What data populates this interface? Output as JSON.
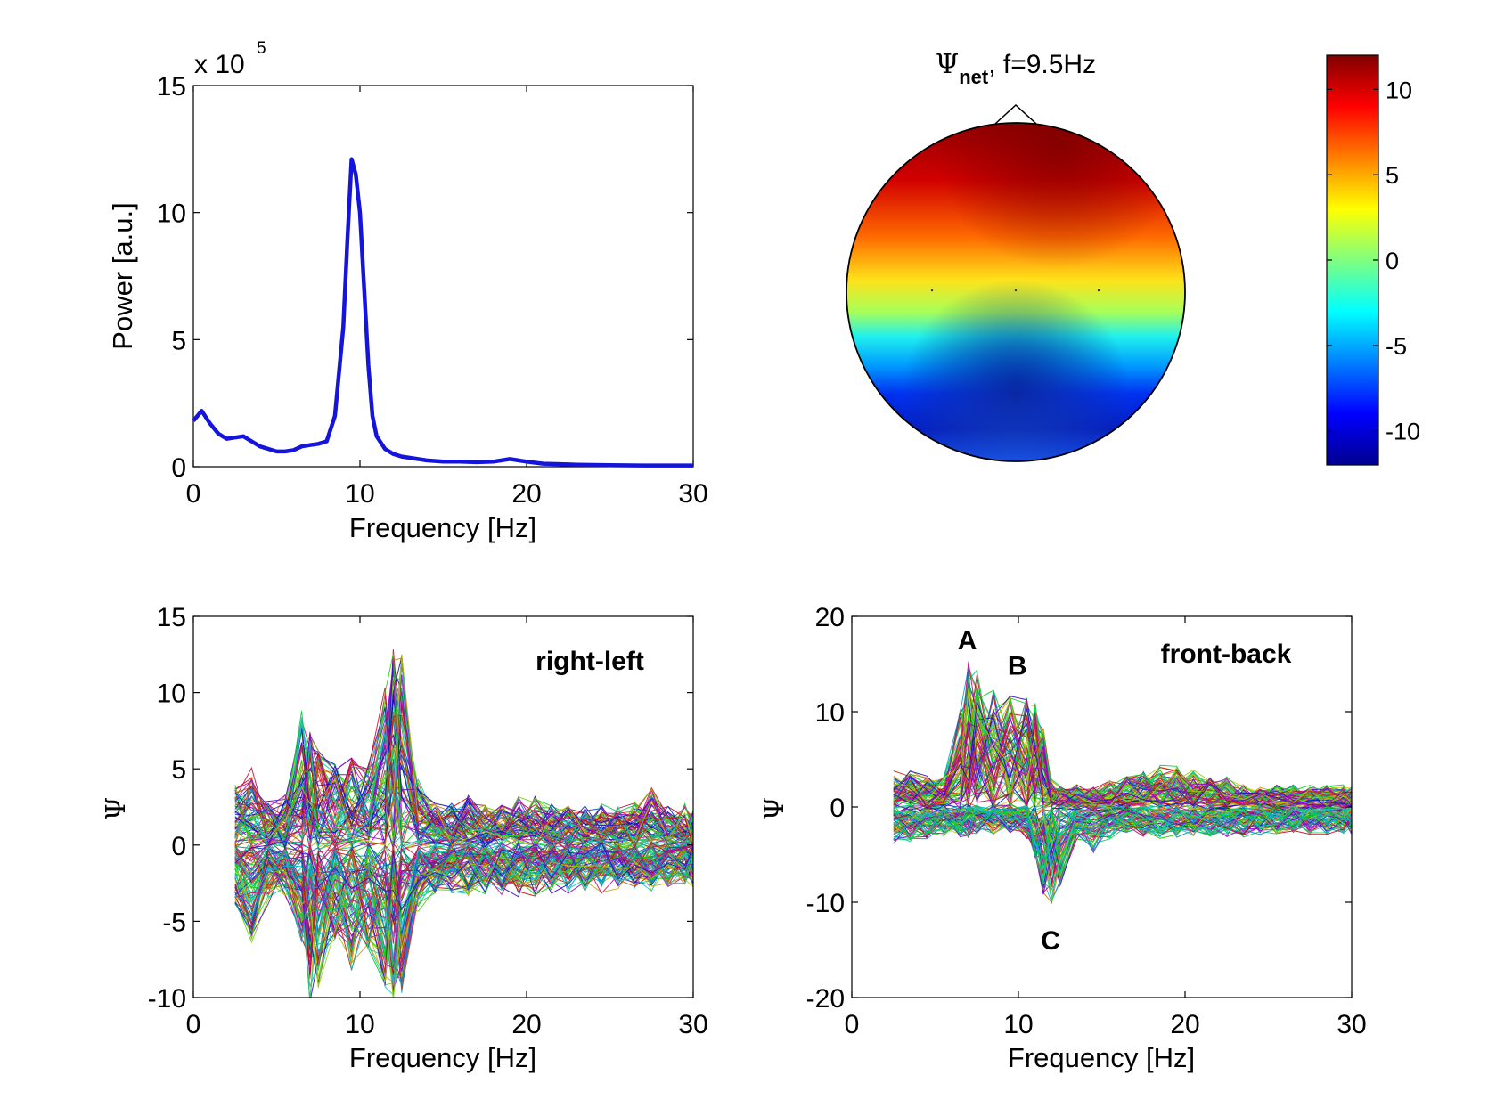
{
  "chart_data": [
    {
      "id": "spectrum",
      "type": "line",
      "xlabel": "Frequency [Hz]",
      "ylabel": "Power [a.u.]",
      "xlim": [
        0,
        30
      ],
      "ylim": [
        0,
        15
      ],
      "xticks": [
        "0",
        "10",
        "20",
        "30"
      ],
      "yticks": [
        "0",
        "5",
        "10",
        "15"
      ],
      "exponent_label": "x 10",
      "exponent_power": "5",
      "series": [
        {
          "name": "power",
          "color": "#1414dc",
          "x": [
            0,
            0.5,
            1,
            1.5,
            2,
            2.5,
            3,
            3.5,
            4,
            4.5,
            5,
            5.5,
            6,
            6.5,
            7,
            7.5,
            8,
            8.5,
            9,
            9.25,
            9.5,
            9.75,
            10,
            10.25,
            10.5,
            10.75,
            11,
            11.5,
            12,
            12.5,
            13,
            14,
            15,
            16,
            17,
            18,
            19,
            20,
            21,
            22,
            23,
            25,
            27,
            30
          ],
          "values": [
            1.8,
            2.2,
            1.7,
            1.3,
            1.1,
            1.15,
            1.2,
            1.0,
            0.8,
            0.7,
            0.6,
            0.6,
            0.65,
            0.8,
            0.85,
            0.9,
            1.0,
            2.0,
            5.5,
            9.0,
            12.1,
            11.5,
            10.0,
            7.0,
            4.0,
            2.0,
            1.2,
            0.7,
            0.5,
            0.4,
            0.35,
            0.25,
            0.2,
            0.2,
            0.18,
            0.2,
            0.3,
            0.2,
            0.12,
            0.1,
            0.08,
            0.06,
            0.05,
            0.05
          ]
        }
      ]
    },
    {
      "id": "right-left",
      "type": "line",
      "title": "right-left",
      "xlabel": "Frequency [Hz]",
      "ylabel": "Ψ",
      "xlim": [
        0,
        30
      ],
      "ylim": [
        -10,
        15
      ],
      "xticks": [
        "0",
        "10",
        "20",
        "30"
      ],
      "yticks": [
        "-10",
        "-5",
        "0",
        "5",
        "10",
        "15"
      ],
      "n_traces": 150,
      "x": [
        2.5,
        3.5,
        4.5,
        5.5,
        6.5,
        7,
        7.5,
        8.5,
        9.5,
        10.5,
        11.5,
        12,
        12.5,
        13.5,
        14.5,
        15.5,
        16.5,
        17.5,
        18.5,
        19.5,
        20.5,
        21.5,
        22.5,
        23.5,
        24.5,
        25.5,
        26.5,
        27.5,
        28.5,
        29.5,
        30
      ],
      "envelope_upper": [
        4,
        4.8,
        2.5,
        3,
        8.5,
        7.5,
        6,
        5,
        5.5,
        5,
        10,
        12.5,
        12.3,
        4,
        2.5,
        2.5,
        3,
        2.5,
        2.5,
        2.8,
        2.8,
        2.4,
        2.4,
        2.2,
        2.4,
        2.2,
        2.5,
        3.5,
        2.2,
        2.5,
        2
      ],
      "envelope_lower": [
        -3.5,
        -6,
        -3.5,
        -3,
        -6,
        -10,
        -9,
        -6,
        -8,
        -6.5,
        -9,
        -10,
        -9.5,
        -4,
        -3,
        -2.8,
        -3,
        -2.8,
        -3,
        -3,
        -3,
        -2.8,
        -2.8,
        -2.8,
        -2.8,
        -2.5,
        -2.5,
        -2.8,
        -2.5,
        -2.5,
        -2.5
      ]
    },
    {
      "id": "front-back",
      "type": "line",
      "title": "front-back",
      "xlabel": "Frequency [Hz]",
      "ylabel": "Ψ",
      "xlim": [
        0,
        30
      ],
      "ylim": [
        -20,
        20
      ],
      "xticks": [
        "0",
        "10",
        "20",
        "30"
      ],
      "yticks": [
        "-20",
        "-10",
        "0",
        "10",
        "20"
      ],
      "n_traces": 150,
      "x": [
        2.5,
        3.5,
        4.5,
        5.5,
        6.5,
        7,
        7.5,
        8.5,
        9.5,
        10.5,
        11,
        11.5,
        12,
        12.5,
        13.5,
        14.5,
        15.5,
        16.5,
        17.5,
        18.5,
        19.5,
        20.5,
        21.5,
        22.5,
        23.5,
        24.5,
        25.5,
        26.5,
        27.5,
        28.5,
        29.5,
        30
      ],
      "envelope_upper": [
        3.5,
        3.5,
        3,
        3,
        10,
        15,
        14,
        12,
        11.5,
        11.5,
        10.5,
        8,
        2.5,
        2,
        2,
        2,
        2.5,
        3,
        3.5,
        4,
        4,
        3.5,
        3,
        2.8,
        2.2,
        2,
        2,
        2,
        2,
        2,
        2,
        1.8
      ],
      "envelope_lower": [
        -3.5,
        -3.5,
        -3,
        -3,
        -3,
        -3,
        -2.5,
        -2.5,
        -2.5,
        -3,
        -5,
        -9,
        -10,
        -8,
        -3,
        -4.5,
        -3,
        -2.5,
        -2.8,
        -3,
        -3,
        -3,
        -2.8,
        -2.8,
        -2.8,
        -2.5,
        -2.5,
        -2.5,
        -2.5,
        -2.5,
        -2.5,
        -2.5
      ],
      "annotations": [
        {
          "label": "A",
          "x": 6.5,
          "y": 17.5
        },
        {
          "label": "B",
          "x": 9.5,
          "y": 14.8
        },
        {
          "label": "C",
          "x": 11.5,
          "y": -14
        }
      ]
    },
    {
      "id": "topomap",
      "type": "heatmap",
      "title_symbol": "Ψ",
      "title_subscript": "net",
      "title_rest": ", f=9.5Hz",
      "description_values": "frontal positive, posterior negative",
      "clim": [
        -12,
        12
      ],
      "colorbar_ticks": [
        "10",
        "5",
        "0",
        "-5",
        "-10"
      ],
      "colorbar_tick_values": [
        10,
        5,
        0,
        -5,
        -10
      ],
      "colormap": "jet"
    }
  ]
}
